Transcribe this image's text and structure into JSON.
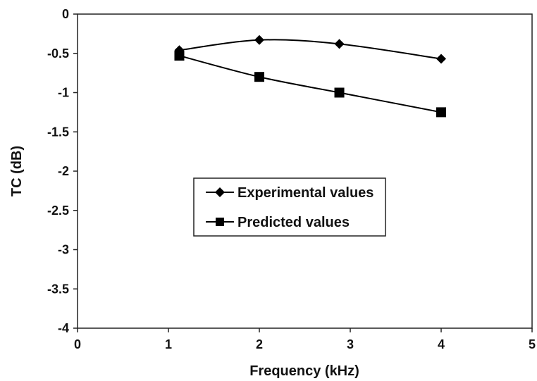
{
  "chart_data": {
    "type": "line",
    "xlabel": "Frequency (kHz)",
    "ylabel": "TC (dB)",
    "xlim": [
      0,
      5
    ],
    "ylim": [
      -4,
      0
    ],
    "x_ticks": [
      "0",
      "1",
      "2",
      "3",
      "4",
      "5"
    ],
    "y_ticks": [
      "0",
      "-0.5",
      "-1",
      "-1.5",
      "-2",
      "-2.5",
      "-3",
      "-3.5",
      "-4"
    ],
    "grid": false,
    "legend_position": "center",
    "series": [
      {
        "name": "Experimental values",
        "marker": "diamond",
        "color": "#000000",
        "x": [
          1.12,
          2.0,
          2.88,
          4.0
        ],
        "y": [
          -0.46,
          -0.33,
          -0.38,
          -0.57
        ]
      },
      {
        "name": "Predicted values",
        "marker": "square",
        "color": "#000000",
        "x": [
          1.12,
          2.0,
          2.88,
          4.0
        ],
        "y": [
          -0.53,
          -0.8,
          -1.0,
          -1.25
        ]
      }
    ]
  }
}
